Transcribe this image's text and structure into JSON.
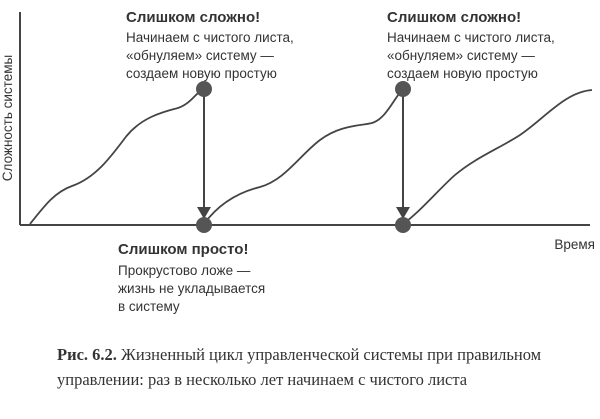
{
  "diagram": {
    "y_axis_label": "Сложность системы",
    "x_axis_label": "Время",
    "top_left": {
      "title": "Слишком сложно!",
      "lines": [
        "Начинаем с чистого листа,",
        "«обнуляем» систему —",
        "создаем новую простую"
      ]
    },
    "top_right": {
      "title": "Слишком сложно!",
      "lines": [
        "Начинаем с чистого листа,",
        "«обнуляем» систему —",
        "создаем новую простую"
      ]
    },
    "bottom": {
      "title": "Слишком просто!",
      "lines": [
        "Прокрустово ложе —",
        "жизнь не укладывается",
        "в систему"
      ]
    }
  },
  "caption": {
    "label": "Рис. 6.2.",
    "text": "Жизненный цикл управленческой системы при правильном управлении: раз в несколько лет начинаем с чистого листа"
  },
  "colors": {
    "line": "#444444",
    "marker": "#555555",
    "text": "#333333"
  }
}
